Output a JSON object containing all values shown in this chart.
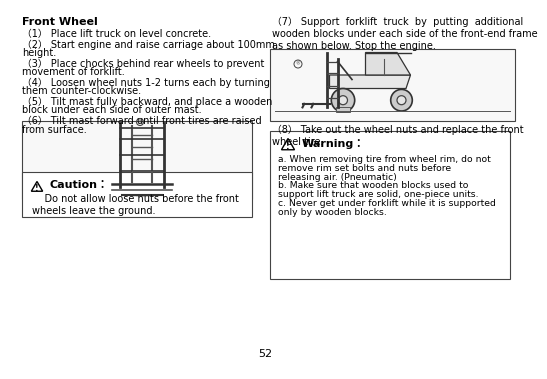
{
  "bg_color": "#ffffff",
  "page_number": "52",
  "left_title": "Front Wheel",
  "left_steps": [
    "（1） Place lift truck on level concrete.",
    "（2） Start engine and raise carriage about 100mm\nheight.",
    "（3） Place chocks behind rear wheels to prevent\nmovement of forklift.",
    "（4） Loosen wheel nuts 1-2 turns each by turning\nthem counter-clockwise.",
    "（5） Tilt mast fully backward, and place a wooden\nblock under each side of outer mast.",
    "（6） Tilt mast forward until front tires are raised\nfrom surface."
  ],
  "caution_title": "Caution：",
  "caution_text": "    Do not allow loose nuts before the front\nwheels leave the ground.",
  "step7": "（7） Support  forklift  truck  by  putting  additional\nwooden blocks under each side of the front-end frame\nas shown below. Stop the engine.",
  "step8": "（8） Take out the wheel nuts and replace the front\nwheel tire.",
  "warning_title": "Warning：",
  "warning_lines": [
    "a. When removing tire from wheel rim, do not",
    "remove rim set bolts and nuts before",
    "releasing air. (Pneumatic)",
    "b. Make sure that wooden blocks used to",
    "support lift truck are solid, one-piece units.",
    "c. Never get under forklift while it is supported",
    "only by wooden blocks."
  ],
  "font_size_title": 8.0,
  "font_size_body": 7.0,
  "font_size_page": 8.0
}
